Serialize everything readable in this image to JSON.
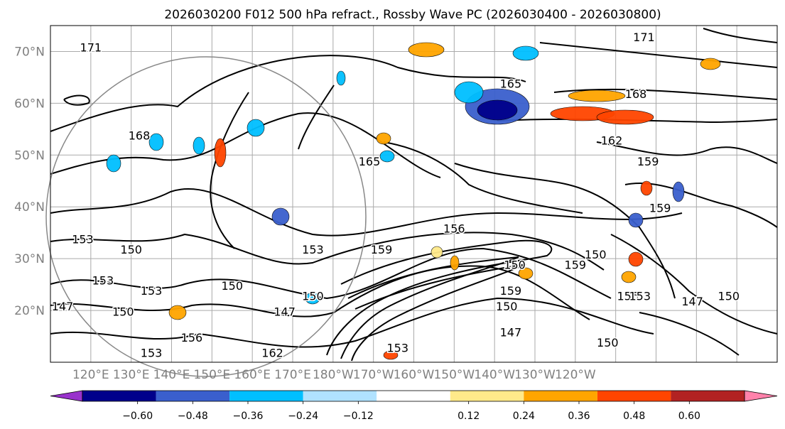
{
  "title": "2026030200 F012 500 hPa refract., Rossby Wave PC (2026030400 - 2026030800)",
  "map": {
    "lat_ticks": [
      "70°N",
      "60°N",
      "50°N",
      "40°N",
      "30°N",
      "20°N"
    ],
    "lat_values": [
      70,
      60,
      50,
      40,
      30,
      20
    ],
    "lon_ticks": [
      "120°E",
      "130°E",
      "140°E",
      "150°E",
      "160°E",
      "170°E",
      "180°W",
      "170°W",
      "160°W",
      "150°W",
      "140°W",
      "130°W",
      "120°W"
    ],
    "lat_range": [
      10,
      75
    ],
    "grid": true,
    "contour_labels": [
      {
        "text": "171",
        "lon": 120,
        "lat": 70
      },
      {
        "text": "168",
        "lon": 132,
        "lat": 53
      },
      {
        "text": "165",
        "lon": 189,
        "lat": 48
      },
      {
        "text": "165",
        "lon": 224,
        "lat": 63
      },
      {
        "text": "168",
        "lon": 255,
        "lat": 61
      },
      {
        "text": "171",
        "lon": 257,
        "lat": 72
      },
      {
        "text": "162",
        "lon": 249,
        "lat": 52
      },
      {
        "text": "159",
        "lon": 258,
        "lat": 48
      },
      {
        "text": "159",
        "lon": 261,
        "lat": 39
      },
      {
        "text": "156",
        "lon": 210,
        "lat": 35
      },
      {
        "text": "159",
        "lon": 192,
        "lat": 31
      },
      {
        "text": "153",
        "lon": 175,
        "lat": 31
      },
      {
        "text": "153",
        "lon": 118,
        "lat": 33
      },
      {
        "text": "150",
        "lon": 130,
        "lat": 31
      },
      {
        "text": "153",
        "lon": 123,
        "lat": 25
      },
      {
        "text": "153",
        "lon": 135,
        "lat": 23
      },
      {
        "text": "150",
        "lon": 155,
        "lat": 24
      },
      {
        "text": "147",
        "lon": 113,
        "lat": 20
      },
      {
        "text": "150",
        "lon": 128,
        "lat": 19
      },
      {
        "text": "150",
        "lon": 175,
        "lat": 22
      },
      {
        "text": "147",
        "lon": 168,
        "lat": 19
      },
      {
        "text": "150",
        "lon": 225,
        "lat": 28
      },
      {
        "text": "159",
        "lon": 240,
        "lat": 28
      },
      {
        "text": "150",
        "lon": 245,
        "lat": 30
      },
      {
        "text": "159",
        "lon": 224,
        "lat": 23
      },
      {
        "text": "150",
        "lon": 223,
        "lat": 20
      },
      {
        "text": "147",
        "lon": 224,
        "lat": 15
      },
      {
        "text": "156",
        "lon": 253,
        "lat": 22
      },
      {
        "text": "153",
        "lon": 256,
        "lat": 22
      },
      {
        "text": "147",
        "lon": 269,
        "lat": 21
      },
      {
        "text": "150",
        "lon": 278,
        "lat": 22
      },
      {
        "text": "150",
        "lon": 248,
        "lat": 13
      },
      {
        "text": "153",
        "lon": 196,
        "lat": 12
      },
      {
        "text": "156",
        "lon": 145,
        "lat": 14
      },
      {
        "text": "153",
        "lon": 135,
        "lat": 11
      },
      {
        "text": "162",
        "lon": 165,
        "lat": 11
      }
    ]
  },
  "colorbar": {
    "tick_labels": [
      "−0.60",
      "−0.48",
      "−0.36",
      "−0.24",
      "−0.12",
      "0.12",
      "0.24",
      "0.36",
      "0.48",
      "0.60"
    ],
    "tick_values": [
      -0.6,
      -0.48,
      -0.36,
      -0.24,
      -0.12,
      0.12,
      0.24,
      0.36,
      0.48,
      0.6
    ],
    "colors": [
      "#9932cc",
      "#00008b",
      "#3a5fcd",
      "#00bfff",
      "#b0e2ff",
      "#ffffff",
      "#ffe98a",
      "#ffa500",
      "#ff4500",
      "#b22222",
      "#ff82ab"
    ],
    "range": [
      -0.72,
      0.72
    ]
  }
}
